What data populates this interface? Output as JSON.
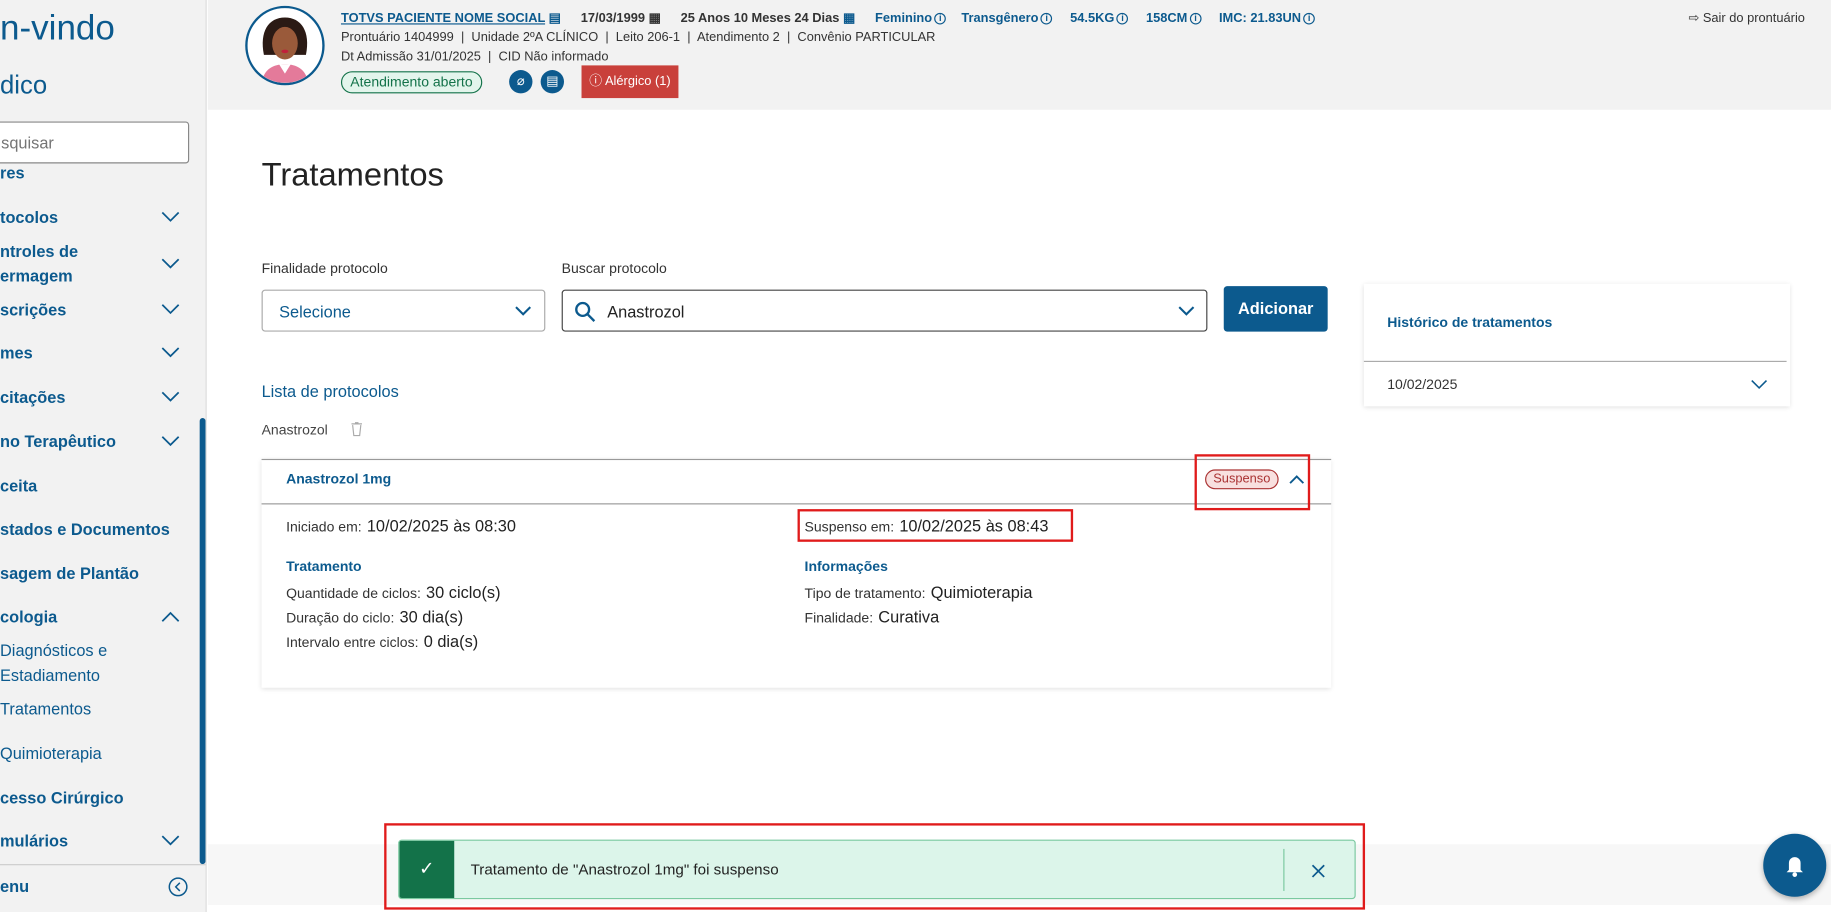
{
  "sidebar": {
    "welcome": "n-vindo",
    "role": "dico",
    "search_placeholder": "squisar",
    "items": [
      {
        "label": "res"
      },
      {
        "label": "tocolos"
      },
      {
        "label": "ntroles de",
        "label2": "ermagem"
      },
      {
        "label": "scrições"
      },
      {
        "label": "mes"
      },
      {
        "label": "citações"
      },
      {
        "label": "no Terapêutico"
      },
      {
        "label": "ceita"
      },
      {
        "label": "stados e Documentos"
      },
      {
        "label": "sagem de Plantão"
      },
      {
        "label": "cologia"
      },
      {
        "label": "Diagnósticos e",
        "label2": "Estadiamento"
      },
      {
        "label": "Tratamentos"
      },
      {
        "label": "Quimioterapia"
      },
      {
        "label": "cesso Cirúrgico"
      },
      {
        "label": "mulários"
      }
    ],
    "menu_label": "enu"
  },
  "patient": {
    "name": "TOTVS PACIENTE NOME SOCIAL",
    "birth": "17/03/1999",
    "age": "25 Anos 10 Meses 24 Dias",
    "sex": "Feminino",
    "gender": "Transgênero",
    "weight": "54.5KG",
    "height": "158CM",
    "imc": "IMC: 21.83UN",
    "line2": "Prontuário 1404999  |  Unidade 2ºA CLÍNICO  |  Leito 206-1  |  Atendimento 2  |  Convênio PARTICULAR",
    "line3": "Dt Admissão 31/01/2025  |  CID Não informado",
    "status": "Atendimento aberto",
    "allergy": "Alérgico (1)",
    "exit": "Sair do prontuário"
  },
  "main": {
    "title": "Tratamentos",
    "finalidade_label": "Finalidade protocolo",
    "finalidade_value": "Selecione",
    "buscar_label": "Buscar protocolo",
    "buscar_value": "Anastrozol",
    "add_button": "Adicionar",
    "list_title": "Lista de protocolos",
    "protocol_name": "Anastrozol",
    "card": {
      "title": "Anastrozol 1mg",
      "status": "Suspenso",
      "started_label": "Iniciado em:",
      "started_value": "10/02/2025 às 08:30",
      "suspended_label": "Suspenso em:",
      "suspended_value": "10/02/2025 às 08:43",
      "treatment_title": "Tratamento",
      "info_title": "Informações",
      "rows_left": [
        {
          "label": "Quantidade de ciclos:",
          "value": "30 ciclo(s)"
        },
        {
          "label": "Duração do ciclo:",
          "value": "30 dia(s)"
        },
        {
          "label": "Intervalo entre ciclos:",
          "value": "0 dia(s)"
        }
      ],
      "rows_right": [
        {
          "label": "Tipo de tratamento:",
          "value": "Quimioterapia"
        },
        {
          "label": "Finalidade:",
          "value": "Curativa"
        }
      ]
    }
  },
  "history": {
    "title": "Histórico de tratamentos",
    "date": "10/02/2025"
  },
  "toast": {
    "message": "Tratamento de \"Anastrozol 1mg\" foi suspenso"
  },
  "colors": {
    "primary": "#0c5a8e",
    "success": "#137249",
    "danger": "#c9403b"
  }
}
